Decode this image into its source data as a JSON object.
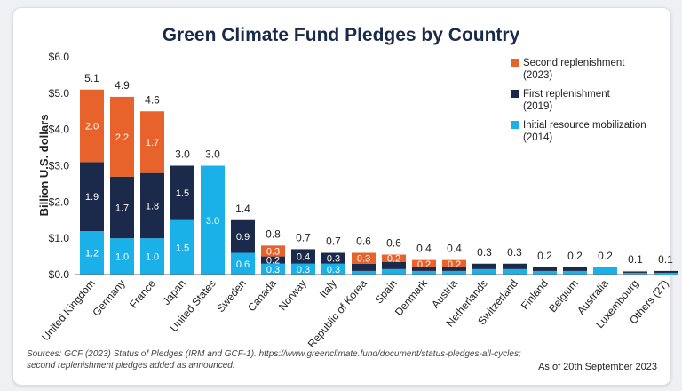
{
  "chart_data": {
    "type": "bar",
    "stacked": true,
    "title": "Green Climate Fund Pledges by Country",
    "ylabel": "Billion U.S. dollars",
    "ylim": [
      0,
      6
    ],
    "yticks": [
      "$0.0",
      "$1.0",
      "$2.0",
      "$3.0",
      "$4.0",
      "$5.0",
      "$6.0"
    ],
    "grid": false,
    "legend_position": "top-right",
    "colors": {
      "initial": "#1ab0e8",
      "first": "#1b2a4a",
      "second": "#e8632b"
    },
    "categories": [
      "United Kingdom",
      "Germany",
      "France",
      "Japan",
      "United States",
      "Sweden",
      "Canada",
      "Norway",
      "Italy",
      "Republic of Korea",
      "Spain",
      "Denmark",
      "Austria",
      "Netherlands",
      "Switzerland",
      "Finland",
      "Belgium",
      "Australia",
      "Luxembourg",
      "Others (27)"
    ],
    "series": [
      {
        "name": "Initial resource mobilization (2014)",
        "legend_line1": "Initial resource mobilization",
        "legend_line2": "(2014)",
        "key": "initial",
        "values": [
          1.2,
          1.0,
          1.0,
          1.5,
          3.0,
          0.6,
          0.3,
          0.3,
          0.3,
          0.1,
          0.15,
          0.1,
          0.1,
          0.15,
          0.15,
          0.1,
          0.1,
          0.2,
          0.05,
          0.05
        ],
        "labels": [
          "1.2",
          "1.0",
          "1.0",
          "1.5",
          "3.0",
          "0.6",
          "0.3",
          "0.3",
          "0.3",
          "",
          "",
          "",
          "",
          "",
          "",
          "",
          "",
          "",
          "",
          ""
        ]
      },
      {
        "name": "First replenishment (2019)",
        "legend_line1": "First replenishment",
        "legend_line2": "(2019)",
        "key": "first",
        "values": [
          1.9,
          1.7,
          1.8,
          1.5,
          0,
          0.9,
          0.2,
          0.4,
          0.3,
          0.2,
          0.2,
          0.1,
          0.1,
          0.15,
          0.15,
          0.1,
          0.1,
          0,
          0.03,
          0.05
        ],
        "labels": [
          "1.9",
          "1.7",
          "1.8",
          "1.5",
          "",
          "0.9",
          "0.2",
          "0.4",
          "0.3",
          "",
          "",
          "",
          "",
          "",
          "",
          "",
          "",
          "",
          "",
          ""
        ]
      },
      {
        "name": "Second replenishment (2023)",
        "legend_line1": "Second replenishment",
        "legend_line2": "(2023)",
        "key": "second",
        "values": [
          2.0,
          2.2,
          1.7,
          0,
          0,
          0,
          0.3,
          0,
          0,
          0.3,
          0.2,
          0.2,
          0.2,
          0,
          0,
          0,
          0,
          0,
          0.02,
          0
        ],
        "labels": [
          "2.0",
          "2.2",
          "1.7",
          "",
          "",
          "",
          "0.3",
          "",
          "",
          "0.3",
          "0.2",
          "0.2",
          "0.2",
          "",
          "",
          "",
          "",
          "",
          "",
          ""
        ]
      }
    ],
    "totals": [
      "5.1",
      "4.9",
      "4.6",
      "3.0",
      "3.0",
      "1.4",
      "0.8",
      "0.7",
      "0.7",
      "0.6",
      "0.6",
      "0.4",
      "0.4",
      "0.3",
      "0.3",
      "0.2",
      "0.2",
      "0.2",
      "0.1",
      "0.1"
    ]
  },
  "source_line1": "Sources: GCF (2023) Status of Pledges (IRM and GCF-1). https://www.greenclimate.fund/document/status-pledges-all-cycles;",
  "source_line2": "second replenishment pledges added as announced.",
  "as_of": "As of 20th September 2023"
}
